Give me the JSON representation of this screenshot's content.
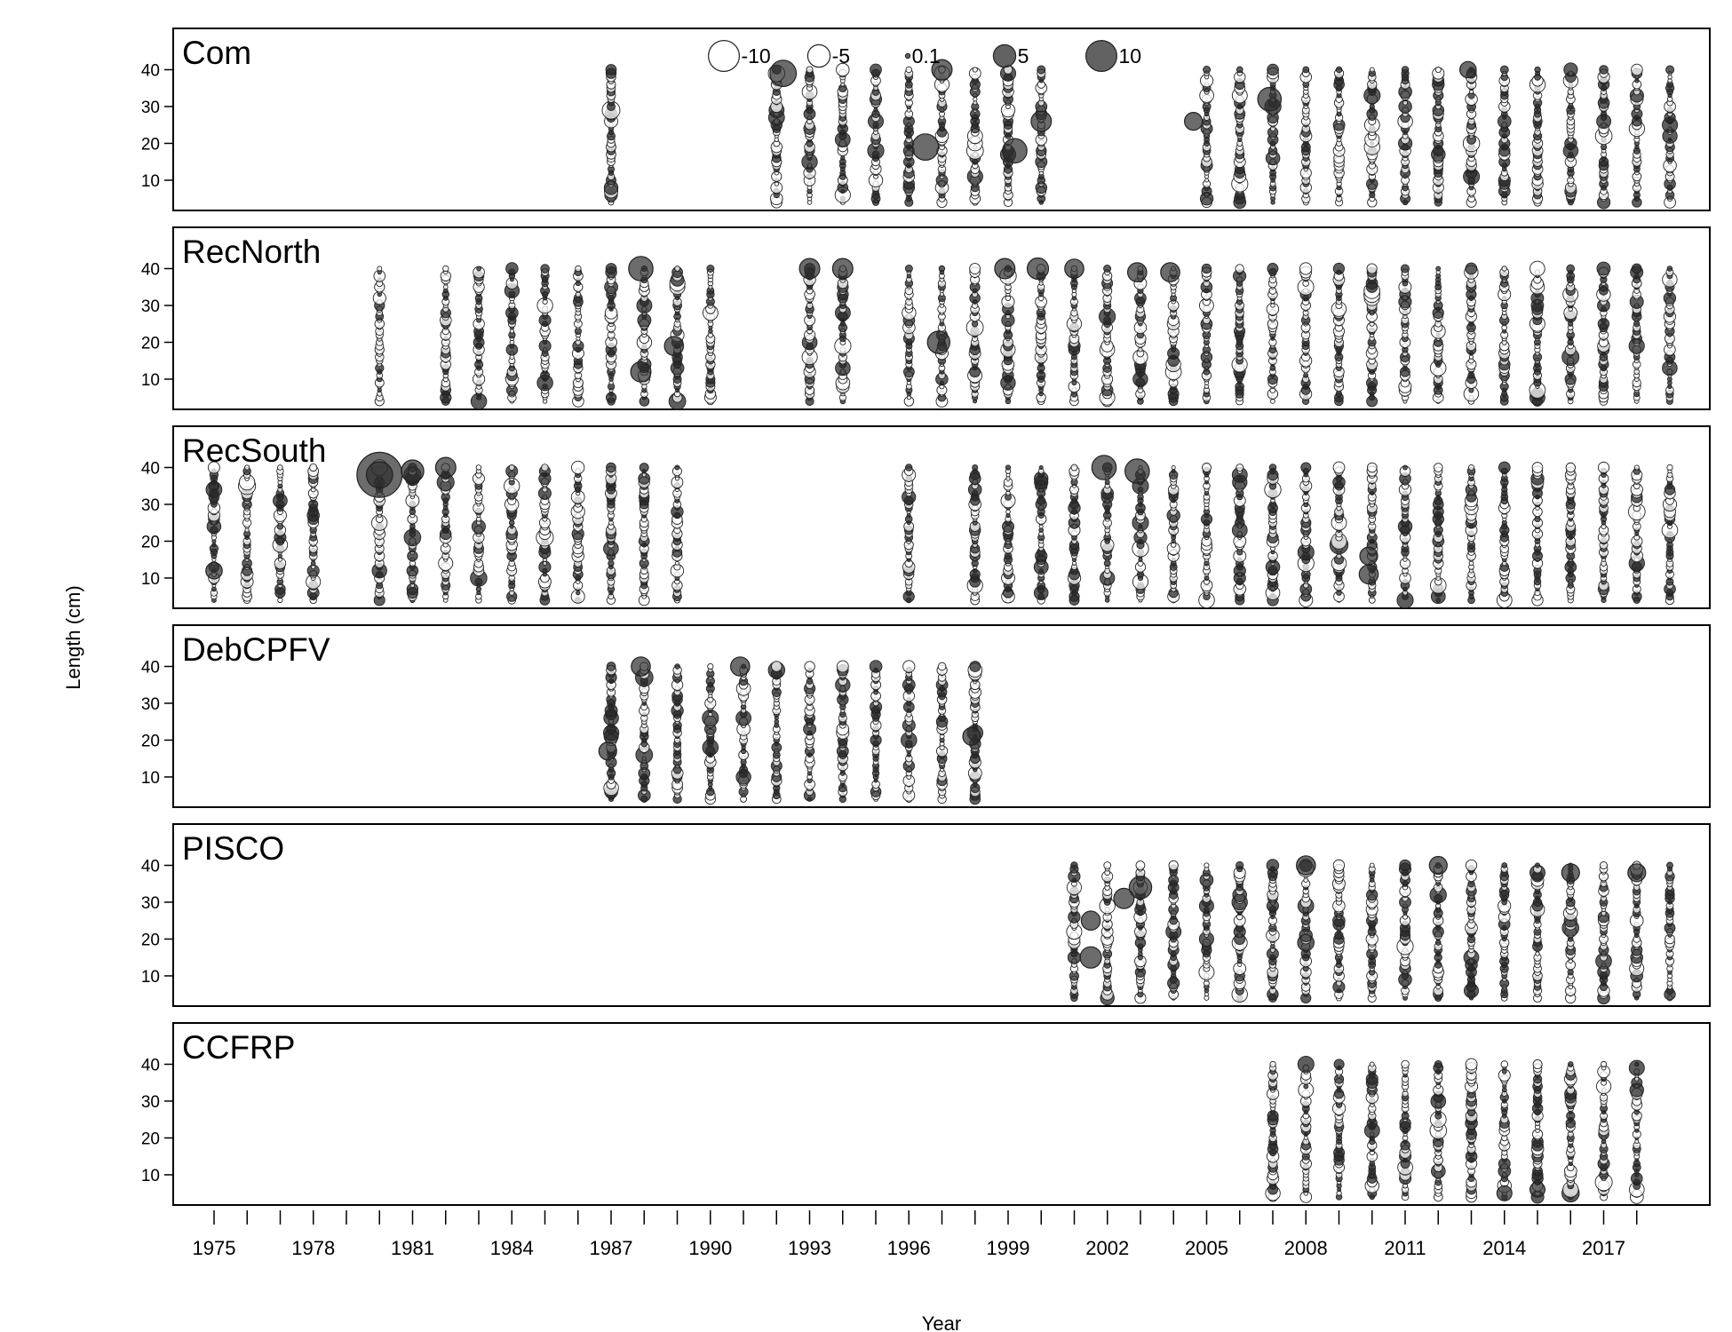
{
  "chart_data": {
    "type": "scatter",
    "subtype": "bubble",
    "xlabel": "Year",
    "ylabel": "Length (cm)",
    "x_ticks": [
      "1975",
      "1978",
      "1981",
      "1984",
      "1987",
      "1990",
      "1993",
      "1996",
      "1999",
      "2002",
      "2005",
      "2008",
      "2011",
      "2014",
      "2017"
    ],
    "xlim": [
      1974,
      2019
    ],
    "y_ticks": [
      "10",
      "20",
      "30",
      "40"
    ],
    "ylim": [
      3,
      50
    ],
    "legend_position": "top-center",
    "legend": [
      {
        "label": "-10",
        "value": -10
      },
      {
        "label": "-5",
        "value": -5
      },
      {
        "label": "0.1",
        "value": 0.1
      },
      {
        "label": "5",
        "value": 5
      },
      {
        "label": "10",
        "value": 10
      }
    ],
    "colors": {
      "positive_fill": "#3a3a3a",
      "negative_fill": "#ffffff",
      "stroke": "#222222"
    },
    "panels": [
      {
        "name": "Com",
        "years": [
          1987,
          1992,
          1993,
          1994,
          1995,
          1996,
          1997,
          1998,
          1999,
          2000,
          2005,
          2006,
          2007,
          2008,
          2009,
          2010,
          2011,
          2012,
          2013,
          2014,
          2015,
          2016,
          2017,
          2018,
          2019
        ],
        "big": [
          {
            "x": 1992.2,
            "y": 39,
            "v": 7
          },
          {
            "x": 1996.5,
            "y": 19,
            "v": 7
          },
          {
            "x": 1997.0,
            "y": 40,
            "v": 4
          },
          {
            "x": 1999.2,
            "y": 18,
            "v": 6
          },
          {
            "x": 2000.0,
            "y": 26,
            "v": 4
          },
          {
            "x": 2006.9,
            "y": 32,
            "v": 5.5
          },
          {
            "x": 2004.6,
            "y": 26,
            "v": 3
          },
          {
            "x": 2012.9,
            "y": 40,
            "v": 2.5
          }
        ]
      },
      {
        "name": "RecNorth",
        "years": [
          1980,
          1982,
          1983,
          1984,
          1985,
          1986,
          1987,
          1988,
          1989,
          1990,
          1993,
          1994,
          1996,
          1997,
          1998,
          1999,
          2000,
          2001,
          2002,
          2003,
          2004,
          2005,
          2006,
          2007,
          2008,
          2009,
          2010,
          2011,
          2012,
          2013,
          2014,
          2015,
          2016,
          2017,
          2018,
          2019
        ],
        "big": [
          {
            "x": 1987.9,
            "y": 40,
            "v": 6
          },
          {
            "x": 1987.9,
            "y": 12,
            "v": 4
          },
          {
            "x": 1993.0,
            "y": 40,
            "v": 4
          },
          {
            "x": 1994.0,
            "y": 40,
            "v": 4
          },
          {
            "x": 1996.9,
            "y": 20,
            "v": 5
          },
          {
            "x": 1998.9,
            "y": 40,
            "v": 4
          },
          {
            "x": 1999.9,
            "y": 40,
            "v": 4.5
          },
          {
            "x": 2001.0,
            "y": 40,
            "v": 3.5
          },
          {
            "x": 2002.9,
            "y": 39,
            "v": 3.5
          },
          {
            "x": 2003.9,
            "y": 39,
            "v": 3.5
          },
          {
            "x": 1988.9,
            "y": 19,
            "v": 3.5
          }
        ]
      },
      {
        "name": "RecSouth",
        "years": [
          1975,
          1976,
          1977,
          1978,
          1980,
          1981,
          1982,
          1983,
          1984,
          1985,
          1986,
          1987,
          1988,
          1989,
          1996,
          1998,
          1999,
          2000,
          2001,
          2002,
          2003,
          2004,
          2005,
          2006,
          2007,
          2008,
          2009,
          2010,
          2011,
          2012,
          2013,
          2014,
          2015,
          2016,
          2017,
          2018,
          2019
        ],
        "big": [
          {
            "x": 1980.0,
            "y": 38,
            "v": 22
          },
          {
            "x": 1980.0,
            "y": 38,
            "v": 7
          },
          {
            "x": 1981.0,
            "y": 39,
            "v": 5
          },
          {
            "x": 1982.0,
            "y": 40,
            "v": 4
          },
          {
            "x": 1975.0,
            "y": 12,
            "v": 2.5
          },
          {
            "x": 2001.9,
            "y": 40,
            "v": 6
          },
          {
            "x": 2002.9,
            "y": 39,
            "v": 6
          },
          {
            "x": 2009.9,
            "y": 11,
            "v": 3.5
          },
          {
            "x": 2009.9,
            "y": 16,
            "v": 3
          }
        ]
      },
      {
        "name": "DebCPFV",
        "years": [
          1987,
          1988,
          1989,
          1990,
          1991,
          1992,
          1993,
          1994,
          1995,
          1996,
          1997,
          1998
        ],
        "big": [
          {
            "x": 1987.9,
            "y": 40,
            "v": 3.5
          },
          {
            "x": 1990.9,
            "y": 40,
            "v": 3.5
          },
          {
            "x": 1986.9,
            "y": 17,
            "v": 3
          },
          {
            "x": 1997.9,
            "y": 21,
            "v": 3
          }
        ]
      },
      {
        "name": "PISCO",
        "years": [
          2001,
          2002,
          2003,
          2004,
          2005,
          2006,
          2007,
          2008,
          2009,
          2010,
          2011,
          2012,
          2013,
          2014,
          2015,
          2016,
          2017,
          2018,
          2019
        ],
        "big": [
          {
            "x": 2001.5,
            "y": 15,
            "v": 4.5
          },
          {
            "x": 2001.5,
            "y": 25,
            "v": 3.5
          },
          {
            "x": 2002.5,
            "y": 31,
            "v": 4
          },
          {
            "x": 2003.0,
            "y": 34,
            "v": 5
          },
          {
            "x": 2008.0,
            "y": 40,
            "v": 3.5
          },
          {
            "x": 2012.0,
            "y": 40,
            "v": 3
          },
          {
            "x": 2016.0,
            "y": 38,
            "v": 3
          },
          {
            "x": 2018.0,
            "y": 38,
            "v": 3
          }
        ]
      },
      {
        "name": "CCFRP",
        "years": [
          2007,
          2008,
          2009,
          2010,
          2011,
          2012,
          2013,
          2014,
          2015,
          2016,
          2017,
          2018
        ],
        "big": [
          {
            "x": 2014.0,
            "y": 5,
            "v": 2
          },
          {
            "x": 2015.0,
            "y": 6,
            "v": 2
          }
        ]
      }
    ]
  }
}
